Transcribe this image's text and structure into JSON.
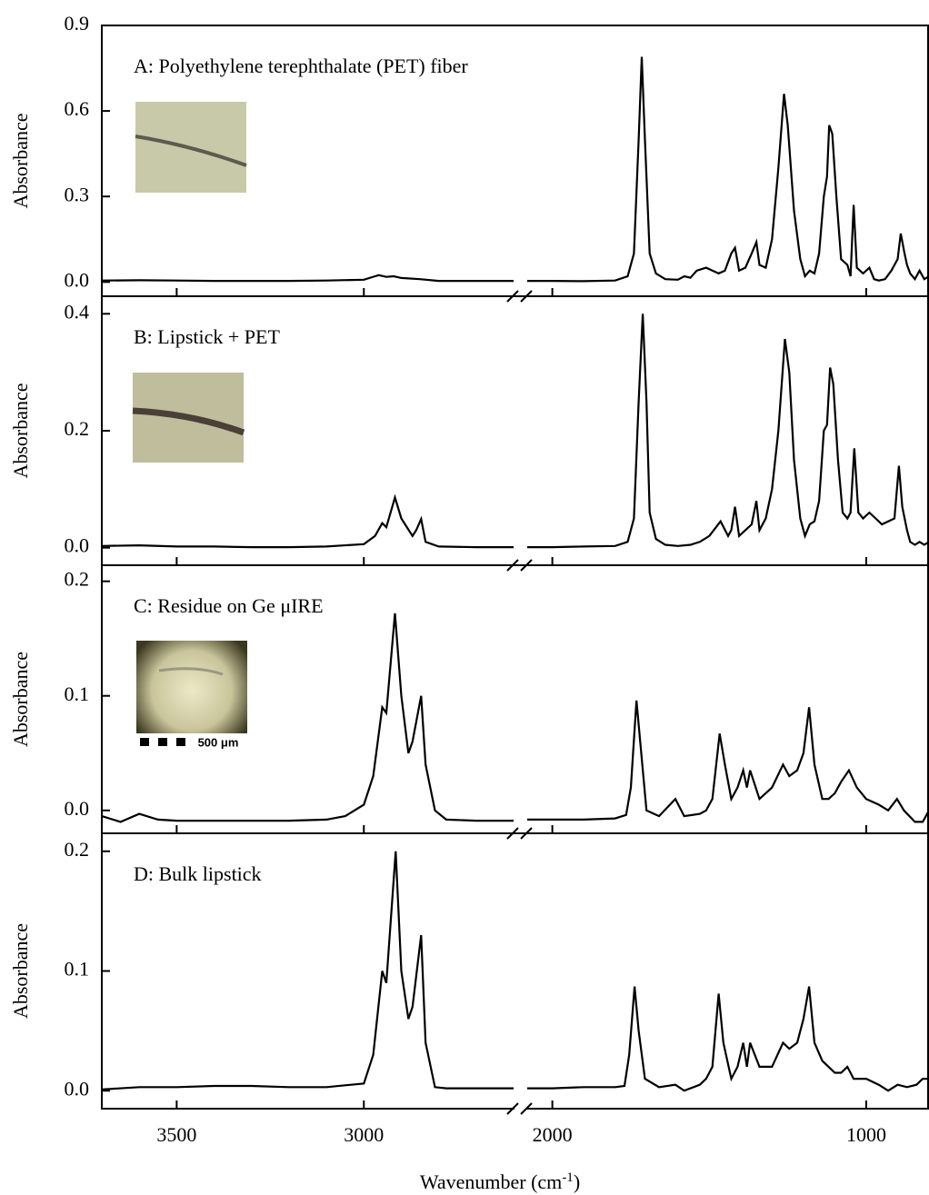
{
  "chart_data": [
    {
      "type": "line",
      "title": "A: Polyethylene terephthalate (PET) fiber",
      "ylabel": "Absorbance",
      "color": "#000000",
      "ylim": [
        -0.05,
        0.9
      ],
      "yticks": [
        {
          "value": 0,
          "label": "0.0"
        },
        0.3,
        0.6,
        0.9
      ],
      "x": [
        3700,
        3600,
        3500,
        3400,
        3300,
        3200,
        3100,
        3000,
        2970,
        2960,
        2940,
        2920,
        2900,
        2850,
        2800,
        2700,
        2600,
        2300,
        2080,
        2000,
        1900,
        1800,
        1760,
        1740,
        1725,
        1715,
        1705,
        1690,
        1670,
        1640,
        1600,
        1580,
        1560,
        1540,
        1510,
        1490,
        1470,
        1450,
        1430,
        1418,
        1405,
        1385,
        1365,
        1350,
        1340,
        1320,
        1300,
        1280,
        1262,
        1250,
        1230,
        1210,
        1195,
        1180,
        1165,
        1150,
        1135,
        1125,
        1118,
        1108,
        1095,
        1080,
        1060,
        1050,
        1040,
        1030,
        1010,
        990,
        975,
        960,
        940,
        920,
        900,
        890,
        878,
        870,
        860,
        845,
        830,
        815,
        800
      ],
      "values": [
        0.005,
        0.006,
        0.005,
        0.004,
        0.004,
        0.004,
        0.005,
        0.008,
        0.02,
        0.024,
        0.018,
        0.02,
        0.014,
        0.01,
        0.004,
        0.004,
        0.004,
        null,
        0.004,
        0.004,
        0.003,
        0.005,
        0.02,
        0.1,
        0.5,
        0.79,
        0.5,
        0.1,
        0.03,
        0.01,
        0.008,
        0.02,
        0.015,
        0.04,
        0.05,
        0.04,
        0.03,
        0.04,
        0.1,
        0.12,
        0.04,
        0.05,
        0.1,
        0.14,
        0.06,
        0.05,
        0.15,
        0.4,
        0.66,
        0.55,
        0.25,
        0.08,
        0.02,
        0.04,
        0.03,
        0.1,
        0.3,
        0.37,
        0.55,
        0.52,
        0.3,
        0.08,
        0.06,
        0.02,
        0.27,
        0.05,
        0.03,
        0.05,
        0.01,
        0.005,
        0.01,
        0.04,
        0.08,
        0.17,
        0.1,
        0.06,
        0.03,
        0.01,
        0.04,
        0.01,
        0.02
      ]
    },
    {
      "type": "line",
      "title": "B: Lipstick + PET",
      "ylabel": "Absorbance",
      "color": "#000000",
      "ylim": [
        -0.03,
        0.43
      ],
      "yticks": [
        {
          "value": 0,
          "label": "0.0"
        },
        0.2,
        0.4
      ],
      "x": [
        3700,
        3600,
        3500,
        3400,
        3300,
        3200,
        3100,
        3000,
        2970,
        2951,
        2940,
        2917,
        2900,
        2870,
        2860,
        2847,
        2835,
        2800,
        2700,
        2600,
        2300,
        2080,
        2000,
        1900,
        1800,
        1760,
        1740,
        1725,
        1712,
        1700,
        1690,
        1670,
        1640,
        1600,
        1560,
        1530,
        1500,
        1464,
        1440,
        1430,
        1418,
        1405,
        1385,
        1365,
        1350,
        1340,
        1320,
        1300,
        1280,
        1259,
        1245,
        1230,
        1210,
        1195,
        1180,
        1165,
        1150,
        1135,
        1125,
        1115,
        1105,
        1090,
        1075,
        1060,
        1050,
        1038,
        1025,
        1010,
        990,
        970,
        950,
        930,
        910,
        896,
        885,
        870,
        860,
        845,
        830,
        815,
        800
      ],
      "values": [
        0.003,
        0.004,
        0.002,
        0.002,
        0.001,
        0.001,
        0.002,
        0.006,
        0.02,
        0.042,
        0.035,
        0.086,
        0.05,
        0.02,
        0.03,
        0.049,
        0.01,
        0.002,
        0.001,
        0.001,
        null,
        0.001,
        0.001,
        0.002,
        0.003,
        0.01,
        0.05,
        0.25,
        0.4,
        0.25,
        0.06,
        0.015,
        0.005,
        0.003,
        0.005,
        0.01,
        0.02,
        0.045,
        0.02,
        0.03,
        0.07,
        0.02,
        0.03,
        0.04,
        0.08,
        0.03,
        0.05,
        0.1,
        0.2,
        0.357,
        0.3,
        0.15,
        0.05,
        0.02,
        0.04,
        0.045,
        0.08,
        0.2,
        0.21,
        0.308,
        0.28,
        0.15,
        0.06,
        0.05,
        0.06,
        0.17,
        0.06,
        0.05,
        0.06,
        0.05,
        0.04,
        0.045,
        0.05,
        0.14,
        0.07,
        0.03,
        0.01,
        0.005,
        0.01,
        0.005,
        0.01
      ]
    },
    {
      "type": "line",
      "title": "C: Residue on Ge μIRE",
      "ylabel": "Absorbance",
      "color": "#000000",
      "inset_label": "500 μm",
      "ylim": [
        -0.02,
        0.214
      ],
      "yticks": [
        {
          "value": 0,
          "label": "0.0"
        },
        0.1,
        0.2
      ],
      "x": [
        3700,
        3650,
        3600,
        3550,
        3500,
        3400,
        3300,
        3200,
        3100,
        3050,
        3000,
        2975,
        2951,
        2940,
        2917,
        2900,
        2881,
        2870,
        2847,
        2835,
        2810,
        2780,
        2700,
        2600,
        2300,
        2080,
        2000,
        1900,
        1800,
        1765,
        1750,
        1732,
        1720,
        1700,
        1660,
        1608,
        1580,
        1530,
        1510,
        1490,
        1467,
        1450,
        1430,
        1410,
        1392,
        1380,
        1370,
        1340,
        1300,
        1265,
        1245,
        1220,
        1200,
        1182,
        1165,
        1140,
        1120,
        1100,
        1080,
        1055,
        1030,
        1000,
        960,
        930,
        902,
        880,
        845,
        820,
        800
      ],
      "values": [
        -0.005,
        -0.01,
        -0.003,
        -0.008,
        -0.009,
        -0.009,
        -0.009,
        -0.009,
        -0.008,
        -0.005,
        0.005,
        0.03,
        0.09,
        0.085,
        0.172,
        0.1,
        0.05,
        0.06,
        0.1,
        0.04,
        0.0,
        -0.008,
        -0.009,
        -0.009,
        null,
        -0.008,
        -0.008,
        -0.008,
        -0.007,
        -0.004,
        0.02,
        0.096,
        0.06,
        0.0,
        -0.005,
        0.01,
        -0.005,
        -0.003,
        0.0,
        0.01,
        0.067,
        0.04,
        0.01,
        0.02,
        0.035,
        0.02,
        0.035,
        0.01,
        0.02,
        0.04,
        0.03,
        0.035,
        0.05,
        0.09,
        0.04,
        0.01,
        0.01,
        0.015,
        0.025,
        0.035,
        0.02,
        0.01,
        0.005,
        0.0,
        0.01,
        0.0,
        -0.01,
        -0.01,
        0.0
      ]
    },
    {
      "type": "line",
      "title": "D: Bulk lipstick",
      "ylabel": "Absorbance",
      "color": "#000000",
      "xlabel_parts": [
        "Wavenumber (cm",
        "-1",
        ")"
      ],
      "x_segments": [
        {
          "xlim": [
            3700,
            2600
          ],
          "xticks": [
            3500,
            3000
          ]
        },
        {
          "xlim": [
            2080,
            800
          ],
          "xticks": [
            2000,
            1000
          ]
        }
      ],
      "ylim": [
        -0.015,
        0.215
      ],
      "yticks": [
        {
          "value": 0,
          "label": "0.0"
        },
        0.1,
        0.2
      ],
      "x": [
        3700,
        3600,
        3500,
        3400,
        3300,
        3200,
        3100,
        3000,
        2975,
        2951,
        2940,
        2915,
        2900,
        2881,
        2870,
        2847,
        2835,
        2810,
        2780,
        2700,
        2600,
        2300,
        2080,
        2000,
        1900,
        1800,
        1770,
        1755,
        1738,
        1725,
        1705,
        1660,
        1608,
        1580,
        1530,
        1510,
        1490,
        1470,
        1455,
        1430,
        1410,
        1392,
        1380,
        1370,
        1340,
        1300,
        1265,
        1245,
        1220,
        1200,
        1182,
        1165,
        1140,
        1120,
        1100,
        1080,
        1060,
        1040,
        1000,
        960,
        930,
        900,
        870,
        840,
        820,
        800
      ],
      "values": [
        0.001,
        0.003,
        0.003,
        0.004,
        0.004,
        0.003,
        0.003,
        0.006,
        0.03,
        0.1,
        0.09,
        0.2,
        0.1,
        0.06,
        0.07,
        0.13,
        0.04,
        0.003,
        0.002,
        0.002,
        0.002,
        null,
        0.002,
        0.002,
        0.003,
        0.003,
        0.004,
        0.03,
        0.087,
        0.05,
        0.01,
        0.003,
        0.005,
        0.0,
        0.005,
        0.01,
        0.02,
        0.081,
        0.04,
        0.01,
        0.02,
        0.04,
        0.02,
        0.04,
        0.02,
        0.02,
        0.04,
        0.035,
        0.04,
        0.06,
        0.087,
        0.04,
        0.025,
        0.02,
        0.015,
        0.015,
        0.02,
        0.01,
        0.01,
        0.005,
        0.0,
        0.005,
        0.003,
        0.005,
        0.01,
        0.01
      ]
    }
  ]
}
